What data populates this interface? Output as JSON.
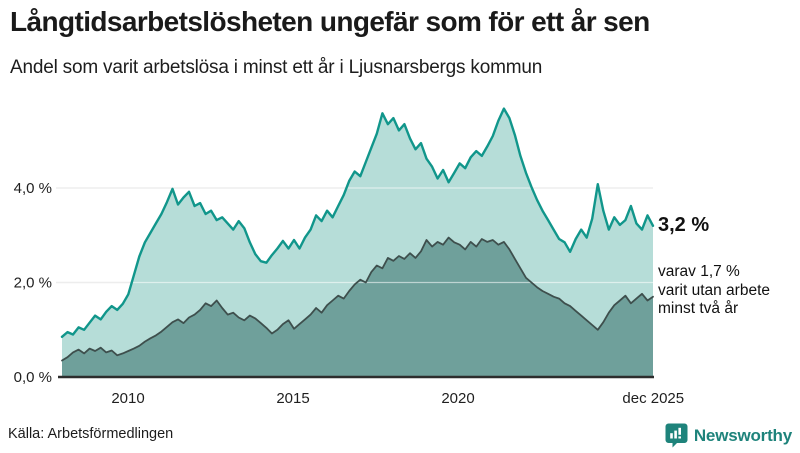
{
  "header": {
    "title": "Långtidsarbetslösheten ungefär som för ett år sen",
    "subtitle": "Andel som varit arbetslösa i minst ett år i Ljusnarsbergs kommun"
  },
  "footer": {
    "source": "Källa: Arbetsförmedlingen",
    "brand": "Newsworthy",
    "brand_icon": "newsworthy-bubble-chart-icon"
  },
  "colors": {
    "series1_line": "#11968B",
    "series1_fill": "#B6DDD8",
    "series2_line": "#3E4F4D",
    "series2_fill": "#6FA09B",
    "gridline": "#D8D8D8",
    "gridline_overlay": "rgba(255,255,255,0.55)",
    "baseline": "#2D2D2D",
    "brand_teal": "#1E837B",
    "text": "#1A1A1A"
  },
  "chart_data": {
    "type": "area",
    "title": "Långtidsarbetslösheten ungefär som för ett år sen",
    "subtitle": "Andel som varit arbetslösa i minst ett år i Ljusnarsbergs kommun",
    "x_range": [
      2008.0,
      2025.917
    ],
    "ylim": [
      0,
      6
    ],
    "grid": true,
    "legend": "none",
    "y_ticks": [
      {
        "value": 4.0,
        "label": "4,0 %"
      },
      {
        "value": 2.0,
        "label": "2,0 %"
      },
      {
        "value": 0.0,
        "label": "0,0 %"
      }
    ],
    "x_ticks": [
      {
        "value": 2010,
        "label": "2010"
      },
      {
        "value": 2015,
        "label": "2015"
      },
      {
        "value": 2020,
        "label": "2020"
      },
      {
        "value": 2025.917,
        "label": "dec 2025"
      }
    ],
    "sampling": "every 2 months, Jan 2008 - Dec 2025",
    "series": [
      {
        "name": "Andel arbetslösa minst ett år",
        "end_value_label": "3,2 %",
        "line_color": "#11968B",
        "fill_color": "#B6DDD8",
        "values": [
          0.85,
          0.95,
          0.9,
          1.05,
          1.0,
          1.15,
          1.3,
          1.22,
          1.38,
          1.5,
          1.42,
          1.55,
          1.75,
          2.15,
          2.55,
          2.85,
          3.05,
          3.25,
          3.45,
          3.7,
          3.98,
          3.65,
          3.8,
          3.92,
          3.62,
          3.68,
          3.45,
          3.52,
          3.32,
          3.38,
          3.25,
          3.12,
          3.3,
          3.15,
          2.85,
          2.6,
          2.45,
          2.42,
          2.58,
          2.72,
          2.88,
          2.72,
          2.9,
          2.72,
          2.95,
          3.12,
          3.42,
          3.3,
          3.52,
          3.38,
          3.62,
          3.85,
          4.15,
          4.35,
          4.25,
          4.55,
          4.85,
          5.15,
          5.58,
          5.35,
          5.48,
          5.22,
          5.35,
          5.05,
          4.82,
          4.95,
          4.62,
          4.45,
          4.2,
          4.38,
          4.12,
          4.32,
          4.52,
          4.42,
          4.65,
          4.78,
          4.68,
          4.88,
          5.1,
          5.42,
          5.68,
          5.48,
          5.12,
          4.68,
          4.32,
          4.02,
          3.75,
          3.52,
          3.32,
          3.12,
          2.92,
          2.85,
          2.65,
          2.92,
          3.12,
          2.95,
          3.35,
          4.08,
          3.52,
          3.12,
          3.38,
          3.22,
          3.32,
          3.62,
          3.25,
          3.12,
          3.42,
          3.2
        ]
      },
      {
        "name": "varav utan arbete minst två år",
        "end_value_label": "1,7 %",
        "line_color": "#3E4F4D",
        "fill_color": "#6FA09B",
        "values": [
          0.35,
          0.42,
          0.52,
          0.58,
          0.5,
          0.6,
          0.55,
          0.62,
          0.52,
          0.56,
          0.46,
          0.5,
          0.55,
          0.6,
          0.66,
          0.75,
          0.82,
          0.88,
          0.96,
          1.06,
          1.16,
          1.22,
          1.14,
          1.26,
          1.32,
          1.42,
          1.56,
          1.5,
          1.62,
          1.46,
          1.32,
          1.36,
          1.26,
          1.2,
          1.3,
          1.24,
          1.14,
          1.04,
          0.92,
          1.0,
          1.12,
          1.2,
          1.02,
          1.12,
          1.22,
          1.32,
          1.46,
          1.36,
          1.52,
          1.62,
          1.72,
          1.66,
          1.82,
          1.96,
          2.06,
          2.0,
          2.22,
          2.36,
          2.3,
          2.52,
          2.46,
          2.56,
          2.5,
          2.62,
          2.52,
          2.66,
          2.9,
          2.76,
          2.86,
          2.8,
          2.95,
          2.85,
          2.8,
          2.7,
          2.86,
          2.76,
          2.92,
          2.86,
          2.9,
          2.8,
          2.86,
          2.7,
          2.5,
          2.3,
          2.1,
          2.0,
          1.9,
          1.82,
          1.76,
          1.7,
          1.66,
          1.56,
          1.5,
          1.4,
          1.3,
          1.2,
          1.1,
          1.0,
          1.16,
          1.36,
          1.52,
          1.62,
          1.72,
          1.56,
          1.66,
          1.76,
          1.62,
          1.7
        ]
      }
    ],
    "annotations": {
      "primary": "3,2 %",
      "secondary": [
        "varav 1,7 %",
        "varit utan arbete",
        "minst två år"
      ]
    }
  }
}
